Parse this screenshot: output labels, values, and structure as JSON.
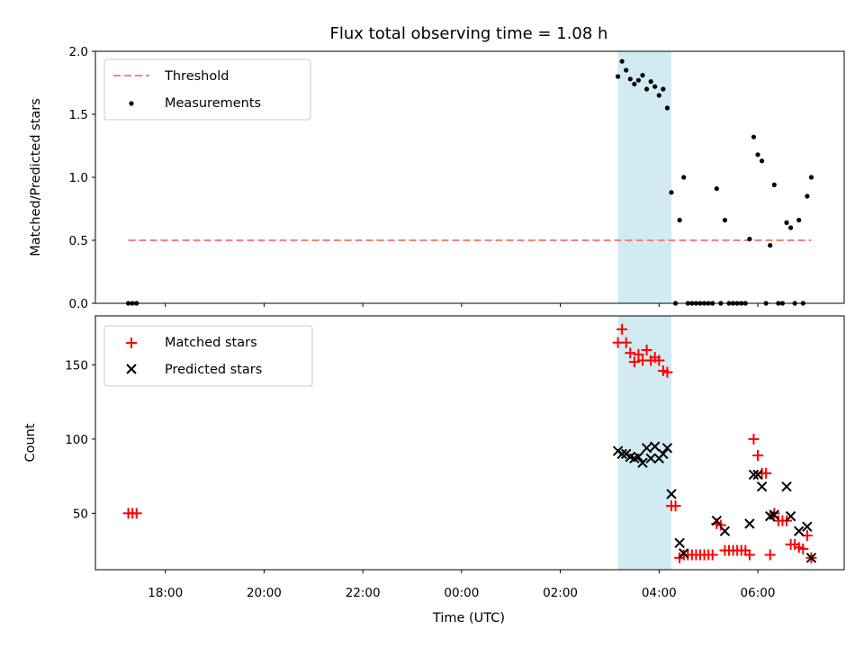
{
  "title": "Flux total observing time = 1.08 h",
  "colors": {
    "threshold": "#ff7f7f",
    "measurements": "#000000",
    "matched": "#ff0000",
    "predicted": "#000000",
    "shade": "#add8e6"
  },
  "chart_data": [
    {
      "type": "scatter",
      "ylabel": "Matched/Predicted stars",
      "xlabel": "",
      "ylim": [
        0,
        2.0
      ],
      "yticks": [
        "0.0",
        "0.5",
        "1.0",
        "1.5",
        "2.0"
      ],
      "legend": "top-left",
      "shaded_interval": [
        "03:10",
        "04:15"
      ],
      "series": [
        {
          "name": "Threshold",
          "style": "dashed-line",
          "points": [
            [
              "17:15",
              0.5
            ],
            [
              "07:05",
              0.5
            ]
          ]
        },
        {
          "name": "Measurements",
          "style": "dot",
          "points": [
            [
              "17:15",
              0.0
            ],
            [
              "17:20",
              0.0
            ],
            [
              "17:25",
              0.0
            ],
            [
              "03:10",
              1.8
            ],
            [
              "03:15",
              1.92
            ],
            [
              "03:20",
              1.85
            ],
            [
              "03:25",
              1.78
            ],
            [
              "03:30",
              1.74
            ],
            [
              "03:35",
              1.77
            ],
            [
              "03:40",
              1.81
            ],
            [
              "03:45",
              1.7
            ],
            [
              "03:50",
              1.76
            ],
            [
              "03:55",
              1.72
            ],
            [
              "04:00",
              1.65
            ],
            [
              "04:05",
              1.7
            ],
            [
              "04:10",
              1.55
            ],
            [
              "04:15",
              0.88
            ],
            [
              "04:20",
              0.0
            ],
            [
              "04:25",
              0.66
            ],
            [
              "04:30",
              1.0
            ],
            [
              "04:35",
              0.0
            ],
            [
              "04:40",
              0.0
            ],
            [
              "04:45",
              0.0
            ],
            [
              "04:50",
              0.0
            ],
            [
              "04:55",
              0.0
            ],
            [
              "05:00",
              0.0
            ],
            [
              "05:05",
              0.0
            ],
            [
              "05:10",
              0.91
            ],
            [
              "05:15",
              0.0
            ],
            [
              "05:20",
              0.66
            ],
            [
              "05:25",
              0.0
            ],
            [
              "05:30",
              0.0
            ],
            [
              "05:35",
              0.0
            ],
            [
              "05:40",
              0.0
            ],
            [
              "05:45",
              0.0
            ],
            [
              "05:50",
              0.51
            ],
            [
              "05:55",
              1.32
            ],
            [
              "06:00",
              1.18
            ],
            [
              "06:05",
              1.13
            ],
            [
              "06:10",
              0.0
            ],
            [
              "06:15",
              0.46
            ],
            [
              "06:20",
              0.94
            ],
            [
              "06:25",
              0.0
            ],
            [
              "06:30",
              0.0
            ],
            [
              "06:35",
              0.64
            ],
            [
              "06:40",
              0.6
            ],
            [
              "06:45",
              0.0
            ],
            [
              "06:50",
              0.66
            ],
            [
              "06:55",
              0.0
            ],
            [
              "07:00",
              0.85
            ],
            [
              "07:05",
              1.0
            ]
          ]
        }
      ]
    },
    {
      "type": "scatter",
      "ylabel": "Count",
      "xlabel": "Time (UTC)",
      "ylim": [
        12,
        183
      ],
      "yticks": [
        "50",
        "100",
        "150"
      ],
      "xticks": [
        "18:00",
        "20:00",
        "22:00",
        "00:00",
        "02:00",
        "04:00",
        "06:00"
      ],
      "legend": "top-left",
      "shaded_interval": [
        "03:10",
        "04:15"
      ],
      "series": [
        {
          "name": "Matched stars",
          "style": "plus",
          "points": [
            [
              "17:15",
              50
            ],
            [
              "17:20",
              50
            ],
            [
              "17:25",
              50
            ],
            [
              "03:10",
              165
            ],
            [
              "03:15",
              174
            ],
            [
              "03:20",
              165
            ],
            [
              "03:25",
              158
            ],
            [
              "03:30",
              152
            ],
            [
              "03:35",
              157
            ],
            [
              "03:40",
              153
            ],
            [
              "03:45",
              160
            ],
            [
              "03:50",
              153
            ],
            [
              "03:55",
              155
            ],
            [
              "04:00",
              153
            ],
            [
              "04:05",
              146
            ],
            [
              "04:10",
              145
            ],
            [
              "04:15",
              55
            ],
            [
              "04:20",
              55
            ],
            [
              "04:25",
              20
            ],
            [
              "04:30",
              22
            ],
            [
              "04:35",
              22
            ],
            [
              "04:40",
              22
            ],
            [
              "04:45",
              22
            ],
            [
              "04:50",
              22
            ],
            [
              "04:55",
              22
            ],
            [
              "05:00",
              22
            ],
            [
              "05:05",
              22
            ],
            [
              "05:10",
              43
            ],
            [
              "05:15",
              42
            ],
            [
              "05:20",
              25
            ],
            [
              "05:25",
              25
            ],
            [
              "05:30",
              25
            ],
            [
              "05:35",
              25
            ],
            [
              "05:40",
              25
            ],
            [
              "05:45",
              25
            ],
            [
              "05:50",
              22
            ],
            [
              "05:55",
              100
            ],
            [
              "06:00",
              89
            ],
            [
              "06:05",
              77
            ],
            [
              "06:10",
              77
            ],
            [
              "06:15",
              22
            ],
            [
              "06:20",
              50
            ],
            [
              "06:25",
              45
            ],
            [
              "06:30",
              45
            ],
            [
              "06:35",
              45
            ],
            [
              "06:40",
              29
            ],
            [
              "06:45",
              29
            ],
            [
              "06:50",
              27
            ],
            [
              "06:55",
              26
            ],
            [
              "07:00",
              35
            ],
            [
              "07:05",
              20
            ]
          ]
        },
        {
          "name": "Predicted stars",
          "style": "x",
          "points": [
            [
              "03:10",
              92
            ],
            [
              "03:15",
              90
            ],
            [
              "03:20",
              90
            ],
            [
              "03:25",
              88
            ],
            [
              "03:30",
              87
            ],
            [
              "03:35",
              88
            ],
            [
              "03:40",
              84
            ],
            [
              "03:45",
              94
            ],
            [
              "03:50",
              87
            ],
            [
              "03:55",
              95
            ],
            [
              "04:00",
              87
            ],
            [
              "04:05",
              90
            ],
            [
              "04:10",
              94
            ],
            [
              "04:15",
              63
            ],
            [
              "04:25",
              30
            ],
            [
              "04:30",
              23
            ],
            [
              "05:10",
              45
            ],
            [
              "05:20",
              38
            ],
            [
              "05:50",
              43
            ],
            [
              "05:55",
              76
            ],
            [
              "06:00",
              76
            ],
            [
              "06:05",
              68
            ],
            [
              "06:15",
              48
            ],
            [
              "06:20",
              49
            ],
            [
              "06:35",
              68
            ],
            [
              "06:40",
              48
            ],
            [
              "06:50",
              38
            ],
            [
              "07:00",
              41
            ],
            [
              "07:05",
              20
            ]
          ]
        }
      ]
    }
  ]
}
